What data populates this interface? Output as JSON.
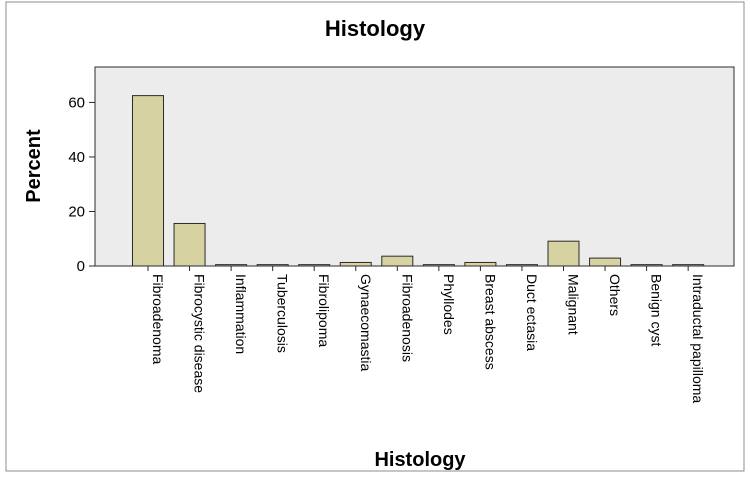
{
  "chart_data": {
    "type": "bar",
    "title": "Histology",
    "xlabel": "Histology",
    "ylabel": "Percent",
    "categories": [
      "Fibroadenoma",
      "Fibrocystic disease",
      "Inflammation",
      "Tuberculosis",
      "Fibrolipoma",
      "Gynaecomastia",
      "Fibroadenosis",
      "Phyllodes",
      "Breast abscess",
      "Duct ectasia",
      "Malignant",
      "Others",
      "Benign cyst",
      "Intraductal papilloma"
    ],
    "values": [
      62.5,
      15.6,
      0.5,
      0.5,
      0.5,
      1.3,
      3.6,
      0.5,
      1.3,
      0.5,
      9.1,
      2.9,
      0.5,
      0.5
    ],
    "yticks": [
      0,
      20,
      40,
      60
    ],
    "ylim": [
      0,
      73
    ],
    "grid": false,
    "legend": "none",
    "colors": {
      "bar_fill": "#d6d2a2",
      "bar_stroke": "#2b2b2b",
      "plot_bg": "#ececec",
      "axis": "#2b2b2b",
      "frame": "#8c8c8c"
    }
  }
}
